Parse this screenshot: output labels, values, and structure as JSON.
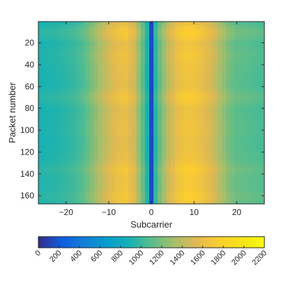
{
  "chart_data": {
    "type": "heatmap",
    "title": "",
    "xlabel": "Subcarrier",
    "ylabel": "Packet number",
    "x_range": [
      -26,
      26
    ],
    "y_range": [
      1,
      167
    ],
    "y_direction": "reverse",
    "x_ticks": [
      -20,
      -10,
      0,
      10,
      20
    ],
    "x_tick_labels": [
      "−20",
      "−10",
      "0",
      "10",
      "20"
    ],
    "y_ticks": [
      20,
      40,
      60,
      80,
      100,
      120,
      140,
      160
    ],
    "y_tick_labels": [
      "20",
      "40",
      "60",
      "80",
      "100",
      "120",
      "140",
      "160"
    ],
    "colorbar": {
      "orientation": "horizontal",
      "placement": "below",
      "colormap": "parula",
      "range": [
        0,
        2200
      ],
      "ticks": [
        0,
        200,
        400,
        600,
        800,
        1000,
        1200,
        1400,
        1600,
        1800,
        2000,
        2200
      ],
      "tick_labels": [
        "0",
        "200",
        "400",
        "600",
        "800",
        "1000",
        "1200",
        "1400",
        "1600",
        "1800",
        "2000",
        "2200"
      ],
      "tick_label_rotation": "diagonal"
    },
    "profile_by_subcarrier": {
      "x": [
        -26,
        -24,
        -22,
        -20,
        -18,
        -16,
        -14,
        -12,
        -10,
        -8,
        -6,
        -4,
        -2,
        -1,
        0,
        1,
        2,
        4,
        6,
        8,
        10,
        12,
        14,
        16,
        18,
        20,
        22,
        24,
        26
      ],
      "value": [
        900,
        920,
        930,
        960,
        1000,
        1080,
        1200,
        1350,
        1480,
        1580,
        1620,
        1480,
        1100,
        900,
        150,
        950,
        1150,
        1420,
        1600,
        1680,
        1660,
        1600,
        1500,
        1350,
        1200,
        1120,
        1100,
        1080,
        1060
      ]
    },
    "packet_scale": {
      "packets": [
        1,
        5,
        10,
        15,
        20,
        25,
        30,
        40,
        50,
        60,
        70,
        80,
        90,
        100,
        110,
        120,
        130,
        136,
        140,
        145,
        150,
        155,
        160,
        165,
        167
      ],
      "factor": [
        0.96,
        1.02,
        1.06,
        1.04,
        0.99,
        1.0,
        1.02,
        1.0,
        0.99,
        0.98,
        1.05,
        0.98,
        0.99,
        1.0,
        0.98,
        0.99,
        1.01,
        1.06,
        1.03,
        1.02,
        1.02,
        1.03,
        1.06,
        1.03,
        1.0
      ]
    },
    "dc_subcarrier": {
      "x": 0,
      "value": 150
    }
  }
}
